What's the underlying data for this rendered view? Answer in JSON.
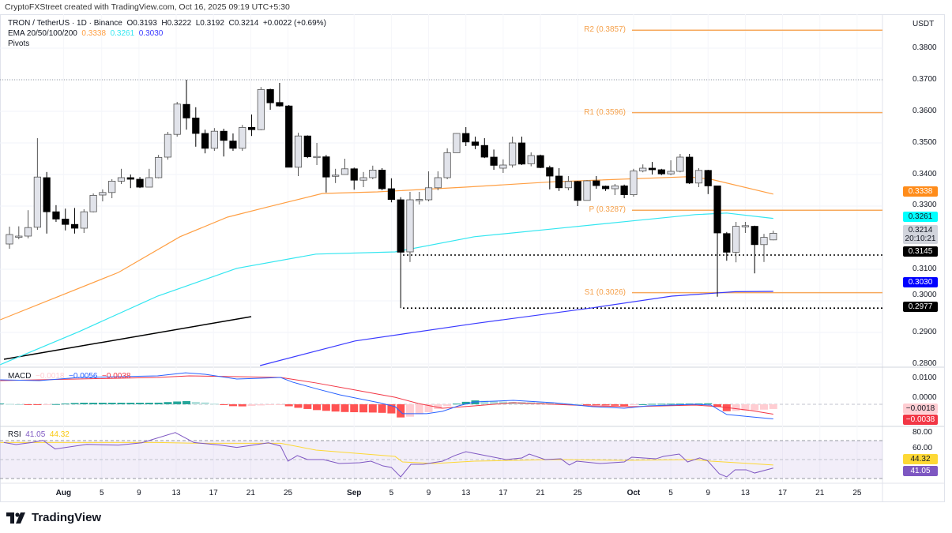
{
  "credit": "CryptoFXStreet created with TradingView.com, Oct 16, 2025 09:19 UTC+5:30",
  "legend": {
    "symbol": "TRON / TetherUS · 1D · Binance",
    "open": "O0.3193",
    "high": "H0.3222",
    "low": "L0.3192",
    "close": "C0.3214",
    "change": "+0.0022 (+0.69%)",
    "ema_label": "EMA 20/50/100/200",
    "ema_values": [
      "0.3338",
      "0.3261",
      "0.3030"
    ],
    "pivots_label": "Pivots"
  },
  "colors": {
    "ema50": "#ff9f43",
    "ema100": "#33e6f0",
    "ema200": "#3a3aff",
    "pivot": "#f7a95c",
    "bull": "#e1e3ea",
    "bear": "#000000",
    "macd": "#2962ff",
    "signal": "#f23645",
    "rsi": "#7e57c2",
    "rsi_ma": "#fdd835"
  },
  "price_axis": {
    "currency": "USDT",
    "ticks": [
      "0.3800",
      "0.3700",
      "0.3600",
      "0.3500",
      "0.3400",
      "0.3300",
      "0.3100",
      "0.3000",
      "0.2900",
      "0.2800"
    ],
    "tick_values": [
      0.38,
      0.37,
      0.36,
      0.35,
      0.34,
      0.33,
      0.31,
      0.3,
      0.29,
      0.28
    ],
    "tags": {
      "ema50": "0.3338",
      "ema100": "0.3261",
      "last": "0.3214",
      "countdown": "20:10:21",
      "support": "0.3145",
      "ema200": "0.3030",
      "low": "0.2977"
    }
  },
  "pivots": [
    {
      "label": "R2 (0.3857)",
      "value": 0.3857
    },
    {
      "label": "R1 (0.3596)",
      "value": 0.3596
    },
    {
      "label": "P (0.3287)",
      "value": 0.3287
    },
    {
      "label": "S1 (0.3026)",
      "value": 0.3026
    }
  ],
  "levels": {
    "high_line": 0.37,
    "support": 0.3145,
    "low": 0.2977
  },
  "candles": [
    [
      0.318,
      0.3235,
      0.3165,
      0.321
    ],
    [
      0.3205,
      0.3236,
      0.3195,
      0.3205
    ],
    [
      0.3205,
      0.3287,
      0.3198,
      0.3232
    ],
    [
      0.3233,
      0.3515,
      0.3225,
      0.3392
    ],
    [
      0.339,
      0.3408,
      0.3213,
      0.3282
    ],
    [
      0.3282,
      0.3303,
      0.325,
      0.3259
    ],
    [
      0.3259,
      0.3292,
      0.3223,
      0.3242
    ],
    [
      0.3242,
      0.3294,
      0.3213,
      0.323
    ],
    [
      0.323,
      0.329,
      0.3215,
      0.3282
    ],
    [
      0.3282,
      0.334,
      0.328,
      0.3334
    ],
    [
      0.3335,
      0.3353,
      0.3315,
      0.3343
    ],
    [
      0.3343,
      0.3385,
      0.3325,
      0.3379
    ],
    [
      0.3379,
      0.3418,
      0.337,
      0.339
    ],
    [
      0.339,
      0.34,
      0.3357,
      0.3385
    ],
    [
      0.3385,
      0.3392,
      0.3357,
      0.336
    ],
    [
      0.336,
      0.3418,
      0.336,
      0.339
    ],
    [
      0.339,
      0.3462,
      0.3388,
      0.3454
    ],
    [
      0.3455,
      0.3535,
      0.3447,
      0.3527
    ],
    [
      0.3527,
      0.363,
      0.352,
      0.3623
    ],
    [
      0.3622,
      0.37,
      0.3542,
      0.3579
    ],
    [
      0.3579,
      0.3613,
      0.3488,
      0.353
    ],
    [
      0.353,
      0.3542,
      0.3467,
      0.3483
    ],
    [
      0.3483,
      0.3547,
      0.3475,
      0.3537
    ],
    [
      0.3537,
      0.3545,
      0.3457,
      0.3508
    ],
    [
      0.3506,
      0.353,
      0.3475,
      0.3483
    ],
    [
      0.3483,
      0.3557,
      0.3475,
      0.3549
    ],
    [
      0.3549,
      0.359,
      0.3522,
      0.3542
    ],
    [
      0.3542,
      0.3677,
      0.354,
      0.3669
    ],
    [
      0.3669,
      0.3672,
      0.3605,
      0.3627
    ],
    [
      0.3628,
      0.369,
      0.3615,
      0.3617
    ],
    [
      0.3617,
      0.362,
      0.3423,
      0.3423
    ],
    [
      0.3423,
      0.3532,
      0.3395,
      0.3522
    ],
    [
      0.3522,
      0.3524,
      0.3452,
      0.3456
    ],
    [
      0.3456,
      0.35,
      0.343,
      0.3457
    ],
    [
      0.3456,
      0.3462,
      0.3343,
      0.3392
    ],
    [
      0.3397,
      0.3418,
      0.3373,
      0.3398
    ],
    [
      0.34,
      0.345,
      0.34,
      0.3418
    ],
    [
      0.3418,
      0.3422,
      0.3352,
      0.3382
    ],
    [
      0.3382,
      0.3408,
      0.336,
      0.339
    ],
    [
      0.339,
      0.3428,
      0.3385,
      0.3414
    ],
    [
      0.3414,
      0.342,
      0.335,
      0.3355
    ],
    [
      0.3355,
      0.3388,
      0.3312,
      0.3321
    ],
    [
      0.332,
      0.3328,
      0.2977,
      0.3154
    ],
    [
      0.3155,
      0.3345,
      0.3123,
      0.332
    ],
    [
      0.332,
      0.3345,
      0.3305,
      0.3321
    ],
    [
      0.332,
      0.341,
      0.3315,
      0.3358
    ],
    [
      0.3358,
      0.341,
      0.335,
      0.339
    ],
    [
      0.339,
      0.3483,
      0.3385,
      0.3469
    ],
    [
      0.3469,
      0.3531,
      0.3469,
      0.353
    ],
    [
      0.353,
      0.355,
      0.349,
      0.3503
    ],
    [
      0.3503,
      0.352,
      0.348,
      0.3492
    ],
    [
      0.3492,
      0.3515,
      0.3452,
      0.3455
    ],
    [
      0.3455,
      0.3479,
      0.3415,
      0.3429
    ],
    [
      0.342,
      0.3448,
      0.3405,
      0.343
    ],
    [
      0.343,
      0.352,
      0.3422,
      0.35
    ],
    [
      0.35,
      0.352,
      0.343,
      0.3433
    ],
    [
      0.3434,
      0.347,
      0.3426,
      0.346
    ],
    [
      0.346,
      0.3463,
      0.342,
      0.3422
    ],
    [
      0.3422,
      0.3428,
      0.3353,
      0.3395
    ],
    [
      0.3395,
      0.342,
      0.3348,
      0.3358
    ],
    [
      0.3358,
      0.3395,
      0.335,
      0.3378
    ],
    [
      0.3378,
      0.338,
      0.33,
      0.3318
    ],
    [
      0.3318,
      0.3382,
      0.3318,
      0.338
    ],
    [
      0.338,
      0.3395,
      0.3355,
      0.3365
    ],
    [
      0.3363,
      0.3365,
      0.3348,
      0.3355
    ],
    [
      0.3355,
      0.337,
      0.3335,
      0.3364
    ],
    [
      0.3364,
      0.3368,
      0.3325,
      0.3336
    ],
    [
      0.3336,
      0.3418,
      0.333,
      0.3411
    ],
    [
      0.3411,
      0.3432,
      0.3407,
      0.342
    ],
    [
      0.342,
      0.344,
      0.34,
      0.3415
    ],
    [
      0.3415,
      0.3418,
      0.3398,
      0.3402
    ],
    [
      0.3402,
      0.3445,
      0.3398,
      0.341
    ],
    [
      0.341,
      0.3465,
      0.3407,
      0.3455
    ],
    [
      0.3455,
      0.3465,
      0.337,
      0.3373
    ],
    [
      0.3373,
      0.342,
      0.336,
      0.3413
    ],
    [
      0.3413,
      0.3415,
      0.3338,
      0.3364
    ],
    [
      0.3364,
      0.3365,
      0.3013,
      0.3215
    ],
    [
      0.3213,
      0.3218,
      0.3127,
      0.3154
    ],
    [
      0.3154,
      0.325,
      0.3122,
      0.3236
    ],
    [
      0.3237,
      0.325,
      0.3215,
      0.3238
    ],
    [
      0.3236,
      0.3238,
      0.3087,
      0.3178
    ],
    [
      0.3178,
      0.3212,
      0.3123,
      0.3201
    ],
    [
      0.3193,
      0.3222,
      0.3192,
      0.3214
    ]
  ],
  "ema_series": {
    "ema50": [
      [
        -1,
        0.294
      ],
      [
        11.7,
        0.309
      ],
      [
        18.3,
        0.3203
      ],
      [
        23.4,
        0.3265
      ],
      [
        27.7,
        0.3297
      ],
      [
        33.6,
        0.334
      ],
      [
        39.5,
        0.3345
      ],
      [
        48.9,
        0.336
      ],
      [
        58.4,
        0.3377
      ],
      [
        72.8,
        0.3393
      ],
      [
        75.3,
        0.3385
      ],
      [
        82,
        0.3338
      ]
    ],
    "ema100": [
      [
        -1,
        0.2798
      ],
      [
        7.5,
        0.2903
      ],
      [
        15.9,
        0.3015
      ],
      [
        24.4,
        0.3103
      ],
      [
        32.9,
        0.3148
      ],
      [
        41.4,
        0.3155
      ],
      [
        49.9,
        0.3203
      ],
      [
        58.4,
        0.3228
      ],
      [
        66.8,
        0.3253
      ],
      [
        73.6,
        0.3273
      ],
      [
        77,
        0.3278
      ],
      [
        82,
        0.3261
      ]
    ],
    "ema200": [
      [
        26.9,
        0.2795
      ],
      [
        37.1,
        0.2873
      ],
      [
        49.9,
        0.2928
      ],
      [
        62.6,
        0.2978
      ],
      [
        71.1,
        0.3015
      ],
      [
        77.9,
        0.3029
      ],
      [
        82,
        0.303
      ]
    ]
  },
  "macd": {
    "label": "MACD",
    "values": [
      "−0.0018",
      "−0.0056",
      "−0.0038"
    ],
    "zero_label": "0.0000",
    "tick": "0.0100",
    "tags": [
      "−0.0018",
      "−0.0038"
    ],
    "macd_line": [
      [
        -1,
        0.0094
      ],
      [
        3.2,
        0.0091
      ],
      [
        7.5,
        0.0103
      ],
      [
        15.9,
        0.0109
      ],
      [
        18.9,
        0.0121
      ],
      [
        21,
        0.0115
      ],
      [
        24.4,
        0.0097
      ],
      [
        27,
        0.01
      ],
      [
        29.1,
        0.0103
      ],
      [
        30.4,
        0.0085
      ],
      [
        32.9,
        0.006
      ],
      [
        35.5,
        0.0036
      ],
      [
        39.7,
        0.0006
      ],
      [
        41.4,
        -0.0009
      ],
      [
        42.2,
        -0.0036
      ],
      [
        44.8,
        -0.0036
      ],
      [
        46.5,
        -0.0027
      ],
      [
        48.2,
        -0.0006
      ],
      [
        49.9,
        0.0009
      ],
      [
        54.1,
        0.0015
      ],
      [
        58.4,
        0.0006
      ],
      [
        62.6,
        -0.0009
      ],
      [
        66,
        -0.0015
      ],
      [
        68.5,
        -0.0006
      ],
      [
        73.6,
        0.0
      ],
      [
        75.3,
        -0.0003
      ],
      [
        77,
        -0.0039
      ],
      [
        79.6,
        -0.0048
      ],
      [
        82,
        -0.0056
      ]
    ],
    "signal_line": [
      [
        -1,
        0.0091
      ],
      [
        15.9,
        0.0103
      ],
      [
        19.3,
        0.0109
      ],
      [
        24.4,
        0.0106
      ],
      [
        29.1,
        0.0103
      ],
      [
        32.9,
        0.0082
      ],
      [
        37.1,
        0.0055
      ],
      [
        41.4,
        0.0027
      ],
      [
        43.9,
        0.0003
      ],
      [
        46.5,
        -0.0015
      ],
      [
        49.9,
        -0.0006
      ],
      [
        54.1,
        0.0006
      ],
      [
        58.4,
        0.0
      ],
      [
        62.6,
        -0.0006
      ],
      [
        66.8,
        -0.0009
      ],
      [
        73.6,
        -0.0003
      ],
      [
        76.2,
        -0.0009
      ],
      [
        79.6,
        -0.0024
      ],
      [
        82,
        -0.0038
      ]
    ]
  },
  "rsi": {
    "label": "RSI",
    "values": [
      "41.05",
      "44.32"
    ],
    "ticks": [
      "80.00",
      "60.00"
    ],
    "tags": [
      "44.32",
      "41.05"
    ],
    "rsi_line": [
      [
        -0.6,
        68
      ],
      [
        0.7,
        65.8
      ],
      [
        2.4,
        68
      ],
      [
        3.6,
        70.3
      ],
      [
        4.9,
        61.2
      ],
      [
        8.3,
        66
      ],
      [
        11.7,
        65.2
      ],
      [
        14.2,
        67.7
      ],
      [
        17.8,
        78.5
      ],
      [
        19.8,
        68
      ],
      [
        22.7,
        65.2
      ],
      [
        24.4,
        62.8
      ],
      [
        26.1,
        65.2
      ],
      [
        27.8,
        67.7
      ],
      [
        29.1,
        64.3
      ],
      [
        29.9,
        48.3
      ],
      [
        30.9,
        54.2
      ],
      [
        32,
        50
      ],
      [
        33.7,
        50
      ],
      [
        35.4,
        45.8
      ],
      [
        37.6,
        46.7
      ],
      [
        38.8,
        48.3
      ],
      [
        40.1,
        43.3
      ],
      [
        41,
        41.7
      ],
      [
        42,
        31.7
      ],
      [
        43.1,
        45
      ],
      [
        44.4,
        45
      ],
      [
        46.5,
        48.3
      ],
      [
        47.8,
        54.2
      ],
      [
        49,
        58.3
      ],
      [
        50.7,
        55
      ],
      [
        53.3,
        50
      ],
      [
        55,
        51.7
      ],
      [
        55.8,
        55.8
      ],
      [
        57.5,
        50
      ],
      [
        59.2,
        50.8
      ],
      [
        60.1,
        44.2
      ],
      [
        60.9,
        48.3
      ],
      [
        63.4,
        45.8
      ],
      [
        66,
        47.5
      ],
      [
        66.8,
        52.5
      ],
      [
        69.4,
        50.8
      ],
      [
        70.2,
        53.3
      ],
      [
        71.9,
        55.8
      ],
      [
        72.8,
        47.5
      ],
      [
        74.1,
        51.7
      ],
      [
        74.9,
        49.2
      ],
      [
        76.2,
        35
      ],
      [
        77,
        31.7
      ],
      [
        77.9,
        39.2
      ],
      [
        79.1,
        39.2
      ],
      [
        80,
        35.8
      ],
      [
        82,
        41.05
      ]
    ],
    "ma_line": [
      [
        -1,
        68
      ],
      [
        15.9,
        68
      ],
      [
        20.2,
        67.2
      ],
      [
        29.1,
        67.2
      ],
      [
        32.9,
        60
      ],
      [
        41.4,
        53.3
      ],
      [
        42.2,
        47.5
      ],
      [
        45.6,
        45.8
      ],
      [
        49.9,
        48.3
      ],
      [
        58.4,
        50
      ],
      [
        66,
        49.2
      ],
      [
        73.6,
        50
      ],
      [
        75.3,
        48.3
      ],
      [
        82,
        44.32
      ]
    ]
  },
  "x_axis": [
    {
      "label": "Aug",
      "day": 5.8,
      "bold": true
    },
    {
      "label": "5",
      "day": 9.9
    },
    {
      "label": "9",
      "day": 13.9
    },
    {
      "label": "13",
      "day": 17.9
    },
    {
      "label": "17",
      "day": 21.9
    },
    {
      "label": "21",
      "day": 25.9
    },
    {
      "label": "25",
      "day": 29.9
    },
    {
      "label": "Sep",
      "day": 37,
      "bold": true
    },
    {
      "label": "5",
      "day": 41
    },
    {
      "label": "9",
      "day": 45
    },
    {
      "label": "13",
      "day": 49
    },
    {
      "label": "17",
      "day": 53
    },
    {
      "label": "21",
      "day": 57
    },
    {
      "label": "25",
      "day": 61
    },
    {
      "label": "Oct",
      "day": 67,
      "bold": true
    },
    {
      "label": "5",
      "day": 71
    },
    {
      "label": "9",
      "day": 75
    },
    {
      "label": "13",
      "day": 79
    },
    {
      "label": "17",
      "day": 83
    },
    {
      "label": "21",
      "day": 87
    },
    {
      "label": "25",
      "day": 91
    }
  ],
  "brand": "TradingView"
}
